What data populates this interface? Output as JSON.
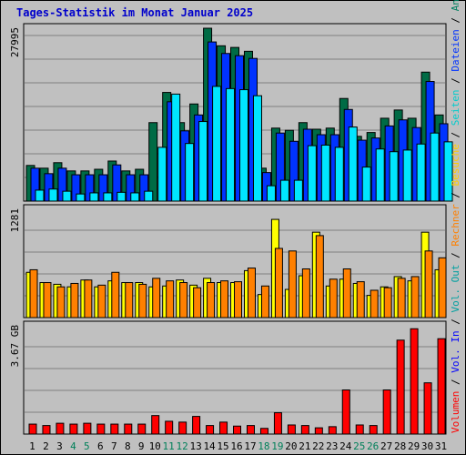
{
  "title": "Tages-Statistik im Monat Januar 2025",
  "chart_data": [
    {
      "type": "bar",
      "panel": "top",
      "ylim": [
        0,
        32000
      ],
      "ytick_label": "27995",
      "categories": [
        "1",
        "2",
        "3",
        "4",
        "5",
        "6",
        "7",
        "8",
        "9",
        "10",
        "11",
        "12",
        "13",
        "14",
        "15",
        "16",
        "17",
        "18",
        "19",
        "20",
        "21",
        "22",
        "23",
        "24",
        "25",
        "26",
        "27",
        "28",
        "29",
        "30",
        "31"
      ],
      "weekend_days": [
        "4",
        "5",
        "11",
        "12",
        "18",
        "19",
        "25",
        "26"
      ],
      "series": [
        {
          "name": "Anfragen",
          "color": "#006b45",
          "values": [
            6500,
            6000,
            7000,
            5500,
            5500,
            5800,
            7300,
            5500,
            5800,
            14300,
            19800,
            14300,
            17700,
            31500,
            28300,
            28000,
            27300,
            6000,
            13300,
            12900,
            14300,
            13100,
            13300,
            18700,
            11800,
            12500,
            15100,
            16600,
            15100,
            23500,
            15700
          ]
        },
        {
          "name": "Dateien",
          "color": "#0033ff",
          "values": [
            6000,
            5000,
            6000,
            4800,
            4800,
            4800,
            6600,
            4800,
            4800,
            0,
            18100,
            12800,
            15700,
            29000,
            26900,
            26500,
            26000,
            5200,
            12400,
            10900,
            13100,
            12100,
            12100,
            16700,
            11100,
            11500,
            13700,
            14800,
            13400,
            21800,
            14100
          ]
        },
        {
          "name": "Seiten",
          "color": "#00e6ff",
          "values": [
            2000,
            2200,
            1800,
            1300,
            1500,
            1500,
            1600,
            1500,
            1800,
            9800,
            19500,
            10500,
            14500,
            20900,
            20500,
            20300,
            19200,
            2800,
            3800,
            3800,
            10100,
            10200,
            9800,
            13500,
            6200,
            9500,
            9000,
            9300,
            10400,
            12400,
            10800
          ]
        }
      ]
    },
    {
      "type": "bar",
      "panel": "middle",
      "ylim": [
        0,
        1300
      ],
      "ytick_label": "1281",
      "categories": [
        "1",
        "2",
        "3",
        "4",
        "5",
        "6",
        "7",
        "8",
        "9",
        "10",
        "11",
        "12",
        "13",
        "14",
        "15",
        "16",
        "17",
        "18",
        "19",
        "20",
        "21",
        "22",
        "23",
        "24",
        "25",
        "26",
        "27",
        "28",
        "29",
        "30",
        "31"
      ],
      "series": [
        {
          "name": "Besuche",
          "color": "#ffff00",
          "values": [
            530,
            410,
            390,
            360,
            440,
            360,
            430,
            410,
            410,
            360,
            370,
            440,
            380,
            460,
            410,
            410,
            550,
            270,
            1150,
            330,
            490,
            1000,
            370,
            450,
            400,
            260,
            360,
            480,
            430,
            1000,
            560
          ]
        },
        {
          "name": "Rechner",
          "color": "#ff8000",
          "values": [
            560,
            410,
            360,
            400,
            440,
            380,
            530,
            410,
            390,
            460,
            430,
            410,
            350,
            410,
            430,
            420,
            580,
            370,
            810,
            780,
            570,
            960,
            450,
            570,
            420,
            320,
            350,
            460,
            480,
            780,
            700
          ]
        }
      ]
    },
    {
      "type": "bar",
      "panel": "bottom",
      "ylim": [
        0,
        3.9
      ],
      "ytick_label": "3.67 GB",
      "categories": [
        "1",
        "2",
        "3",
        "4",
        "5",
        "6",
        "7",
        "8",
        "9",
        "10",
        "11",
        "12",
        "13",
        "14",
        "15",
        "16",
        "17",
        "18",
        "19",
        "20",
        "21",
        "22",
        "23",
        "24",
        "25",
        "26",
        "27",
        "28",
        "29",
        "30",
        "31"
      ],
      "series": [
        {
          "name": "Volumen",
          "color": "#ff0000",
          "values": [
            0.35,
            0.3,
            0.38,
            0.35,
            0.38,
            0.35,
            0.35,
            0.35,
            0.35,
            0.65,
            0.45,
            0.42,
            0.62,
            0.3,
            0.42,
            0.28,
            0.3,
            0.2,
            0.75,
            0.32,
            0.3,
            0.22,
            0.26,
            1.55,
            0.32,
            0.3,
            1.55,
            3.3,
            3.7,
            1.8,
            3.35
          ]
        }
      ]
    }
  ],
  "side_labels": [
    {
      "text": "Volumen",
      "color": "#ff0000"
    },
    {
      "text": " / ",
      "color": "#000000"
    },
    {
      "text": "Vol. In",
      "color": "#0000ff"
    },
    {
      "text": " / ",
      "color": "#000000"
    },
    {
      "text": "Vol. Out",
      "color": "#00a0a0"
    },
    {
      "text": " / ",
      "color": "#000000"
    },
    {
      "text": "Rechner",
      "color": "#ff8000"
    },
    {
      "text": " / ",
      "color": "#000000"
    },
    {
      "text": "Besuche",
      "color": "#ffcc00"
    },
    {
      "text": " / ",
      "color": "#000000"
    },
    {
      "text": "Seiten",
      "color": "#00cccc"
    },
    {
      "text": " / ",
      "color": "#000000"
    },
    {
      "text": "Dateien",
      "color": "#0033ff"
    },
    {
      "text": " / ",
      "color": "#000000"
    },
    {
      "text": "Anfragen",
      "color": "#008060"
    }
  ],
  "colors": {
    "background": "#c0c0c0",
    "grid": "#808080",
    "weekday_label": "#000000",
    "weekend_label": "#00805a"
  }
}
